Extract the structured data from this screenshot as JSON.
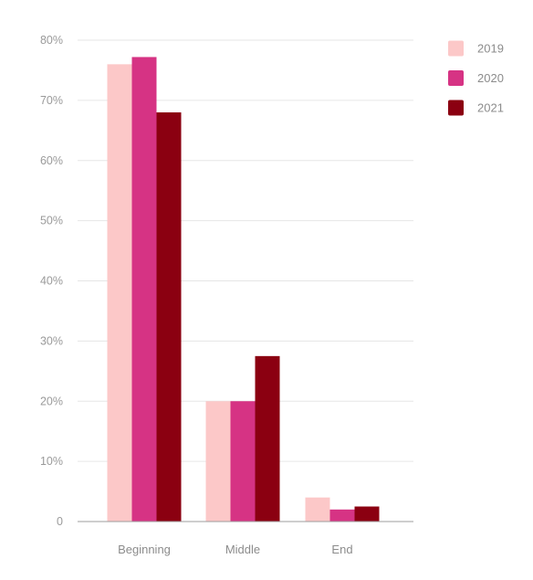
{
  "chart_data": {
    "type": "bar",
    "title": "",
    "xlabel": "",
    "ylabel": "",
    "categories": [
      "Beginning",
      "Middle",
      "End"
    ],
    "series": [
      {
        "name": "2019",
        "color": "#fcc8c8",
        "values": [
          76,
          20,
          4
        ]
      },
      {
        "name": "2020",
        "color": "#d63384",
        "values": [
          77.2,
          20,
          2
        ]
      },
      {
        "name": "2021",
        "color": "#8b0011",
        "values": [
          68,
          27.5,
          2.5
        ]
      }
    ],
    "ylim": [
      0,
      80
    ],
    "yticks": [
      0,
      10,
      20,
      30,
      40,
      50,
      60,
      70,
      80
    ],
    "ytick_labels": [
      "0",
      "10%",
      "20%",
      "30%",
      "40%",
      "50%",
      "60%",
      "70%",
      "80%"
    ],
    "grid": true,
    "legend_position": "top-right"
  }
}
